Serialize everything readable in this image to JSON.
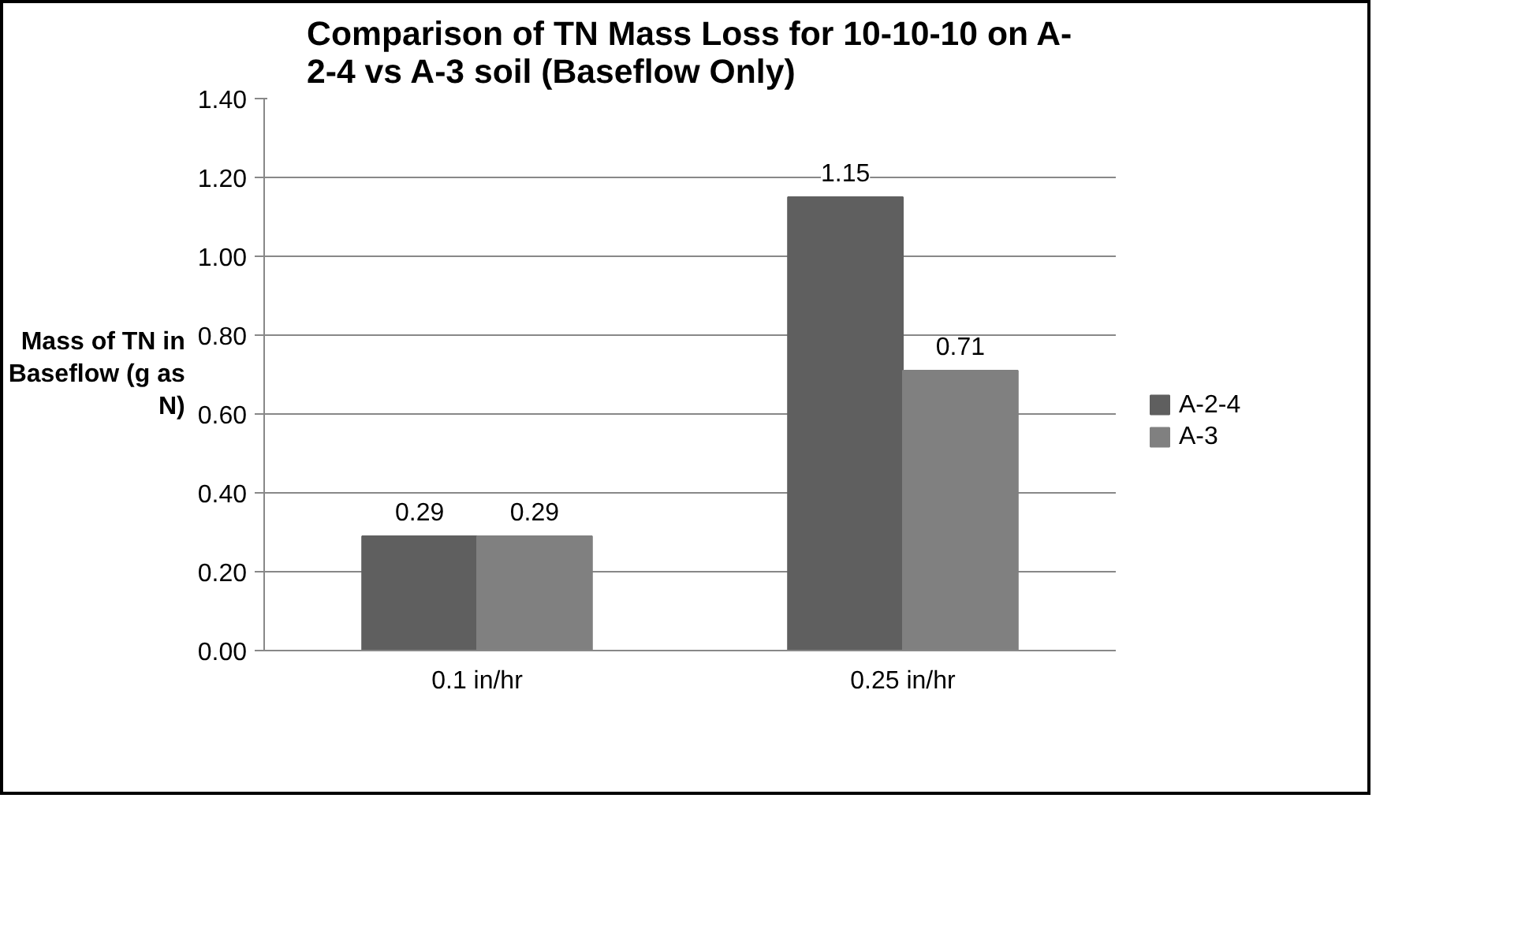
{
  "chart_data": {
    "type": "bar",
    "title": "Comparison of TN Mass Loss for 10-10-10 on A-\n2-4 vs A-3 soil (Baseflow Only)",
    "ylabel": "Mass of TN in\nBaseflow (g as\nN)",
    "categories": [
      "0.1 in/hr",
      "0.25 in/hr"
    ],
    "series": [
      {
        "name": "A-2-4",
        "color": "#5f5f5f",
        "values": [
          0.29,
          1.15
        ]
      },
      {
        "name": "A-3",
        "color": "#808080",
        "values": [
          0.29,
          0.71
        ]
      }
    ],
    "ylim": [
      0,
      1.4
    ],
    "yticks": [
      {
        "value": 0,
        "label": "0.00"
      },
      {
        "value": 0.2,
        "label": "0.20"
      },
      {
        "value": 0.4,
        "label": "0.40"
      },
      {
        "value": 0.6,
        "label": "0.60"
      },
      {
        "value": 0.8,
        "label": "0.80"
      },
      {
        "value": 1.0,
        "label": "1.00"
      },
      {
        "value": 1.2,
        "label": "1.20"
      },
      {
        "value": 1.4,
        "label": "1.40"
      }
    ],
    "grid": "y",
    "legend": "right",
    "data_labels": true
  }
}
